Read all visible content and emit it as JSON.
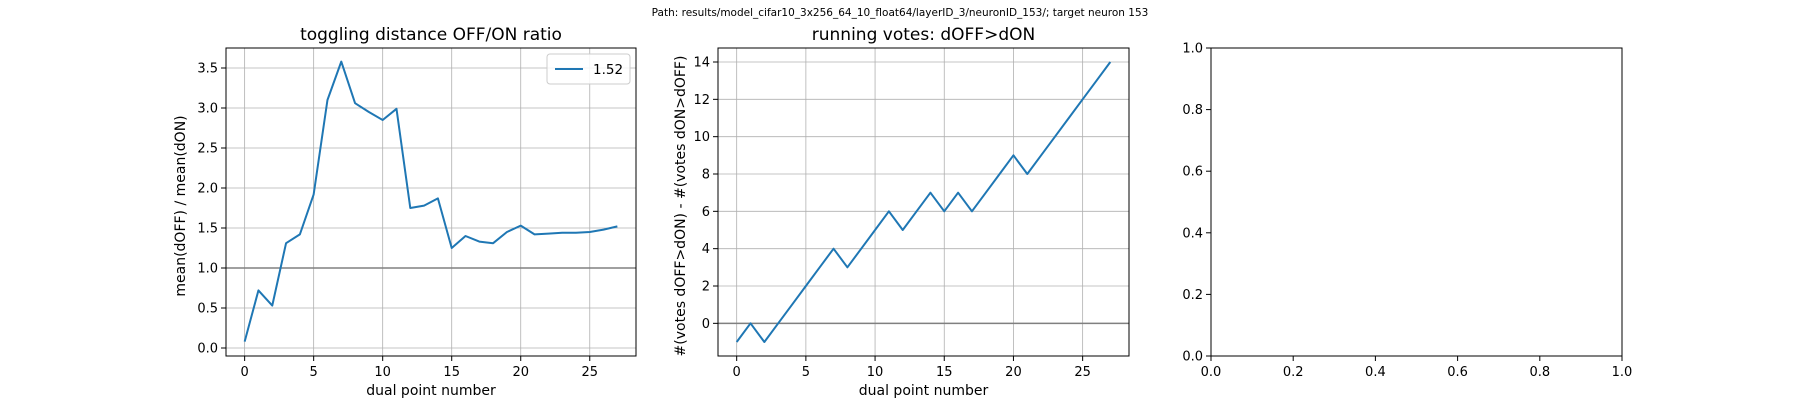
{
  "suptitle": "Path: results/model_cifar10_3x256_64_10_float64/layerID_3/neuronID_153/; target neuron 153",
  "colors": {
    "series": "#1f77b4",
    "grid": "#b0b0b0",
    "refline": "#808080",
    "axes": "#000000",
    "background": "#ffffff"
  },
  "chart_data": [
    {
      "type": "line",
      "title": "toggling distance OFF/ON ratio",
      "xlabel": "dual point number",
      "ylabel": "mean(dOFF) / mean(dON)",
      "xlim": [
        -1.35,
        28.35
      ],
      "ylim": [
        -0.1,
        3.75
      ],
      "xticks": [
        0,
        5,
        10,
        15,
        20,
        25
      ],
      "yticks": [
        0.0,
        0.5,
        1.0,
        1.5,
        2.0,
        2.5,
        3.0,
        3.5
      ],
      "ytick_labels": [
        "0.0",
        "0.5",
        "1.0",
        "1.5",
        "2.0",
        "2.5",
        "3.0",
        "3.5"
      ],
      "grid": true,
      "hline": 1.0,
      "legend": {
        "position": "top-right",
        "entries": [
          "1.52"
        ]
      },
      "series": [
        {
          "name": "1.52",
          "x": [
            0,
            1,
            2,
            3,
            4,
            5,
            6,
            7,
            8,
            9,
            10,
            11,
            12,
            13,
            14,
            15,
            16,
            17,
            18,
            19,
            20,
            21,
            22,
            23,
            24,
            25,
            26,
            27
          ],
          "y": [
            0.08,
            0.72,
            0.53,
            1.31,
            1.42,
            1.92,
            3.1,
            3.58,
            3.06,
            2.95,
            2.85,
            2.99,
            1.75,
            1.78,
            1.87,
            1.25,
            1.4,
            1.33,
            1.31,
            1.45,
            1.53,
            1.42,
            1.43,
            1.44,
            1.44,
            1.45,
            1.48,
            1.52
          ]
        }
      ]
    },
    {
      "type": "line",
      "title": "running votes: dOFF>dON",
      "xlabel": "dual point number",
      "ylabel": "#(votes dOFF>dON) - #(votes dON>dOFF)",
      "xlim": [
        -1.35,
        28.35
      ],
      "ylim": [
        -1.75,
        14.75
      ],
      "xticks": [
        0,
        5,
        10,
        15,
        20,
        25
      ],
      "yticks": [
        0,
        2,
        4,
        6,
        8,
        10,
        12,
        14
      ],
      "ytick_labels": [
        "0",
        "2",
        "4",
        "6",
        "8",
        "10",
        "12",
        "14"
      ],
      "grid": true,
      "hline": 0,
      "series": [
        {
          "x": [
            0,
            1,
            2,
            3,
            4,
            5,
            6,
            7,
            8,
            9,
            10,
            11,
            12,
            13,
            14,
            15,
            16,
            17,
            18,
            19,
            20,
            21,
            22,
            23,
            24,
            25,
            26,
            27
          ],
          "y": [
            -1,
            0,
            -1,
            0,
            1,
            2,
            3,
            4,
            3,
            4,
            5,
            6,
            5,
            6,
            7,
            6,
            7,
            6,
            7,
            8,
            9,
            8,
            9,
            10,
            11,
            12,
            13,
            14
          ]
        }
      ]
    },
    {
      "type": "line",
      "title": "",
      "xlabel": "",
      "ylabel": "",
      "xlim": [
        0,
        1
      ],
      "ylim": [
        0,
        1
      ],
      "xticks": [
        0,
        0.2,
        0.4,
        0.6,
        0.8,
        1.0
      ],
      "yticks": [
        0,
        0.2,
        0.4,
        0.6,
        0.8,
        1.0
      ],
      "xtick_labels": [
        "0.0",
        "0.2",
        "0.4",
        "0.6",
        "0.8",
        "1.0"
      ],
      "ytick_labels": [
        "0.0",
        "0.2",
        "0.4",
        "0.6",
        "0.8",
        "1.0"
      ],
      "grid": false,
      "series": []
    }
  ]
}
